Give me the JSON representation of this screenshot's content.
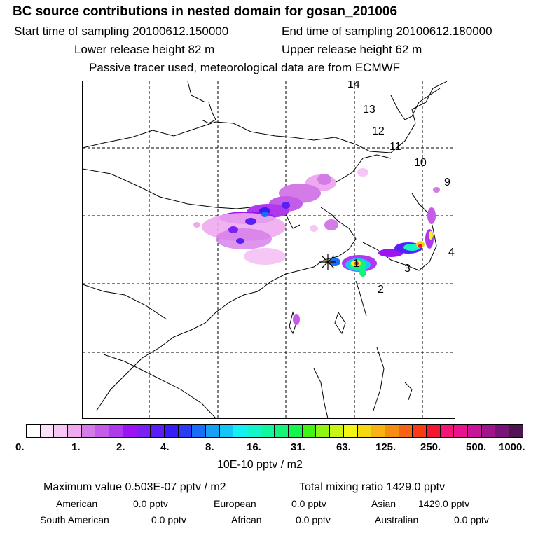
{
  "header": {
    "title": "BC  source contributions in nested domain for gosan_201006",
    "start_label": "Start time of sampling 20100612.150000",
    "end_label": "End time of sampling 20100612.180000",
    "lower_label": "Lower release height   82 m",
    "upper_label": "Upper release height   62 m",
    "tracer_label": "Passive tracer used, meteorological data are from ECMWF"
  },
  "map": {
    "trajectory_labels": [
      "14",
      "13",
      "12",
      "11",
      "10",
      "9",
      "4",
      "3",
      "2",
      "1"
    ],
    "release_marker": "asterisk"
  },
  "colorbar": {
    "colors": [
      "#ffffff",
      "#fbe0fb",
      "#f6c6f6",
      "#eeaaf0",
      "#d47be8",
      "#c35ce8",
      "#b039f0",
      "#9d14f2",
      "#7c1ff5",
      "#5b1ef5",
      "#3a1cf5",
      "#2a3cf5",
      "#1a6ef5",
      "#16a0f5",
      "#14c8f5",
      "#16f0f5",
      "#14f5c8",
      "#14f5a0",
      "#14f578",
      "#14f550",
      "#40f514",
      "#90f514",
      "#c8f514",
      "#f5f514",
      "#f5d814",
      "#f5b414",
      "#f58c14",
      "#f56414",
      "#f53c14",
      "#f51432",
      "#f51478",
      "#e8148c",
      "#c81496",
      "#a0148c",
      "#781478",
      "#501450"
    ],
    "tick_labels": [
      "0.",
      "1.",
      "2.",
      "4.",
      "8.",
      "16.",
      "31.",
      "63.",
      "125.",
      "250.",
      "500.",
      "1000."
    ],
    "unit": "10E-10 pptv / m2"
  },
  "stats": {
    "max_value": "Maximum value  0.503E-07 pptv / m2",
    "total_mixing": "Total mixing ratio      1429.0 pptv",
    "american_label": "American",
    "american_value": "0.0 pptv",
    "european_label": "European",
    "european_value": "0.0 pptv",
    "asian_label": "Asian",
    "asian_value": "1429.0 pptv",
    "south_american_label": "South American",
    "south_american_value": "0.0 pptv",
    "african_label": "African",
    "african_value": "0.0 pptv",
    "australian_label": "Australian",
    "australian_value": "0.0 pptv"
  }
}
